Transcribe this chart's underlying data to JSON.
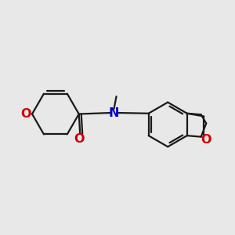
{
  "bg_color": "#e8e8e8",
  "bond_color": "#1a1a1a",
  "o_color": "#cc0000",
  "n_color": "#0000cc",
  "font_size": 11.5,
  "line_width": 1.6,
  "figsize": [
    3.0,
    3.0
  ],
  "dpi": 100,
  "xlim": [
    0.0,
    10.0
  ],
  "ylim": [
    2.0,
    8.5
  ]
}
